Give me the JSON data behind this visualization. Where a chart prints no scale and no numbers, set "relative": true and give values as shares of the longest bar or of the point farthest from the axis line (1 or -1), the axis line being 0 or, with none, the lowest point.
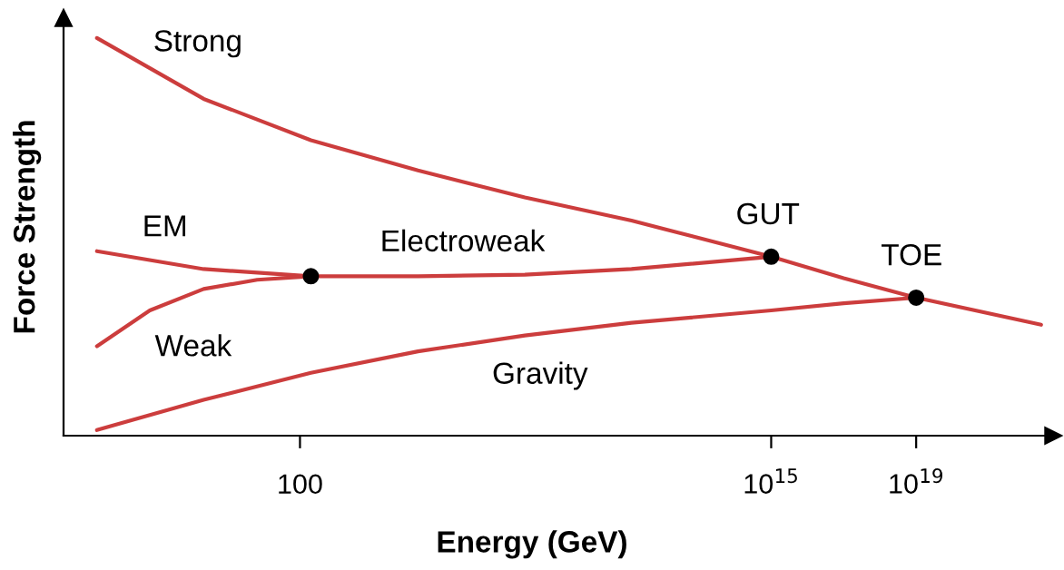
{
  "chart_data": {
    "type": "line",
    "relative": true,
    "xlabel": "Energy (GeV)",
    "ylabel": "Force Strength",
    "log": "x",
    "xlim": [
      3e-05,
      6e+22
    ],
    "xticks": [
      100,
      {
        "value": 1000000000000000.0,
        "label": "10$^{15}$"
      },
      {
        "value": 1e+19,
        "label": "10$^{19}$"
      }
    ],
    "grid": false,
    "marker": "none",
    "line_style": "solid",
    "series": [
      {
        "name": "Strong",
        "color": "#cc3d3d",
        "x": [
          0.00025,
          0.22,
          200,
          180000.0,
          160000000.0,
          140000000000.0,
          1000000000000000.0,
          1e+17,
          1e+19,
          2.8e+22
        ],
        "values": [
          1.0,
          0.847,
          0.743,
          0.667,
          0.599,
          0.541,
          0.45,
          0.396,
          0.347,
          0.279
        ]
      },
      {
        "name": "EM",
        "color": "#cc3d3d",
        "x": [
          0.00025,
          0.22,
          200
        ],
        "values": [
          0.464,
          0.419,
          0.401
        ]
      },
      {
        "name": "Electroweak",
        "color": "#cc3d3d",
        "x": [
          200,
          180000.0,
          160000000.0,
          140000000000.0,
          1000000000000000.0
        ],
        "values": [
          0.401,
          0.401,
          0.405,
          0.419,
          0.45
        ]
      },
      {
        "name": "Weak",
        "color": "#cc3d3d",
        "x": [
          0.00025,
          0.0072,
          0.22,
          6.6,
          200
        ],
        "values": [
          0.225,
          0.315,
          0.369,
          0.392,
          0.401
        ]
      },
      {
        "name": "Gravity",
        "color": "#cc3d3d",
        "x": [
          0.00025,
          0.22,
          200,
          180000.0,
          160000000.0,
          140000000000.0,
          1000000000000000.0,
          1e+17,
          1e+19
        ],
        "values": [
          0.014,
          0.09,
          0.158,
          0.212,
          0.252,
          0.284,
          0.315,
          0.333,
          0.347
        ]
      },
      {
        "type": "scatter",
        "marker": "circle",
        "color": "#000000",
        "x": [
          200,
          1000000000000000.0,
          1e+19
        ],
        "values": [
          0.401,
          0.45,
          0.347
        ]
      }
    ],
    "annotations": [
      {
        "text": "GUT",
        "x": 1000000000000000.0,
        "y": 0.45
      },
      {
        "text": "TOE",
        "x": 1e+19,
        "y": 0.347
      }
    ]
  }
}
